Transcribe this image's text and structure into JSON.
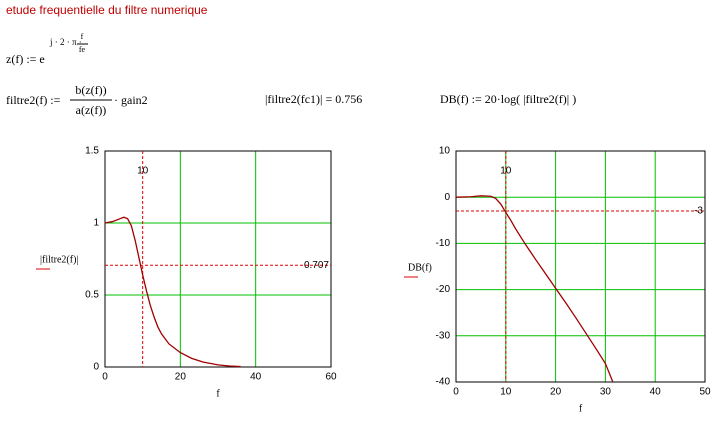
{
  "header": {
    "title": "etude frequentielle du filtre numerique"
  },
  "equations": {
    "z_lhs": "z(f) := e",
    "z_exp": "j · 2 · π ·",
    "z_num": "f",
    "z_den": "fe",
    "filtre_lhs": "filtre2(f) :=",
    "filtre_num": "b(z(f))",
    "filtre_den": "a(z(f))",
    "filtre_tail": "· gain2",
    "eval": "|filtre2(fc1)| = 0.756",
    "db": "DB(f) := 20·log( |filtre2(f)| )"
  },
  "chart_data": [
    {
      "type": "line",
      "x_label": "f",
      "y_label": "|filtre2(f)|",
      "x": [
        0,
        2,
        4,
        5,
        6,
        7,
        8,
        9,
        10,
        11,
        12,
        13,
        14,
        15,
        17,
        20,
        23,
        26,
        30,
        33,
        36
      ],
      "series": [
        {
          "color": "#a00000",
          "values": [
            1,
            1.01,
            1.03,
            1.04,
            1.03,
            0.98,
            0.88,
            0.76,
            0.64,
            0.53,
            0.43,
            0.35,
            0.28,
            0.23,
            0.16,
            0.1,
            0.06,
            0.035,
            0.015,
            0.007,
            0.003
          ]
        }
      ],
      "xlim": [
        0,
        60
      ],
      "xticks": [
        0,
        20,
        40,
        60
      ],
      "ylim": [
        0,
        1.5
      ],
      "yticks": [
        0,
        0.5,
        1,
        1.5
      ],
      "grid": true,
      "grid_color": "#00c000",
      "marker_color": "#e00000",
      "markers": {
        "x": 10,
        "y": 0.707
      }
    },
    {
      "type": "line",
      "x_label": "f",
      "y_label": "DB(f)",
      "x": [
        0,
        3,
        5,
        7,
        8,
        9,
        10,
        11,
        12,
        14,
        16,
        18,
        20,
        22,
        24,
        26,
        28,
        30,
        31.5
      ],
      "series": [
        {
          "color": "#a00000",
          "values": [
            0,
            0.1,
            0.3,
            0.2,
            -0.3,
            -1.5,
            -3.3,
            -5,
            -6.9,
            -10.3,
            -13.5,
            -16.6,
            -19.7,
            -22.8,
            -26,
            -29.3,
            -32.6,
            -36,
            -40
          ]
        }
      ],
      "xlim": [
        0,
        50
      ],
      "xticks": [
        0,
        10,
        20,
        30,
        40,
        50
      ],
      "ylim": [
        -40,
        10
      ],
      "yticks": [
        -40,
        -30,
        -20,
        -10,
        0,
        10
      ],
      "grid": true,
      "grid_color": "#00c000",
      "marker_color": "#e00000",
      "markers": {
        "x": 10,
        "y": -3
      }
    }
  ]
}
